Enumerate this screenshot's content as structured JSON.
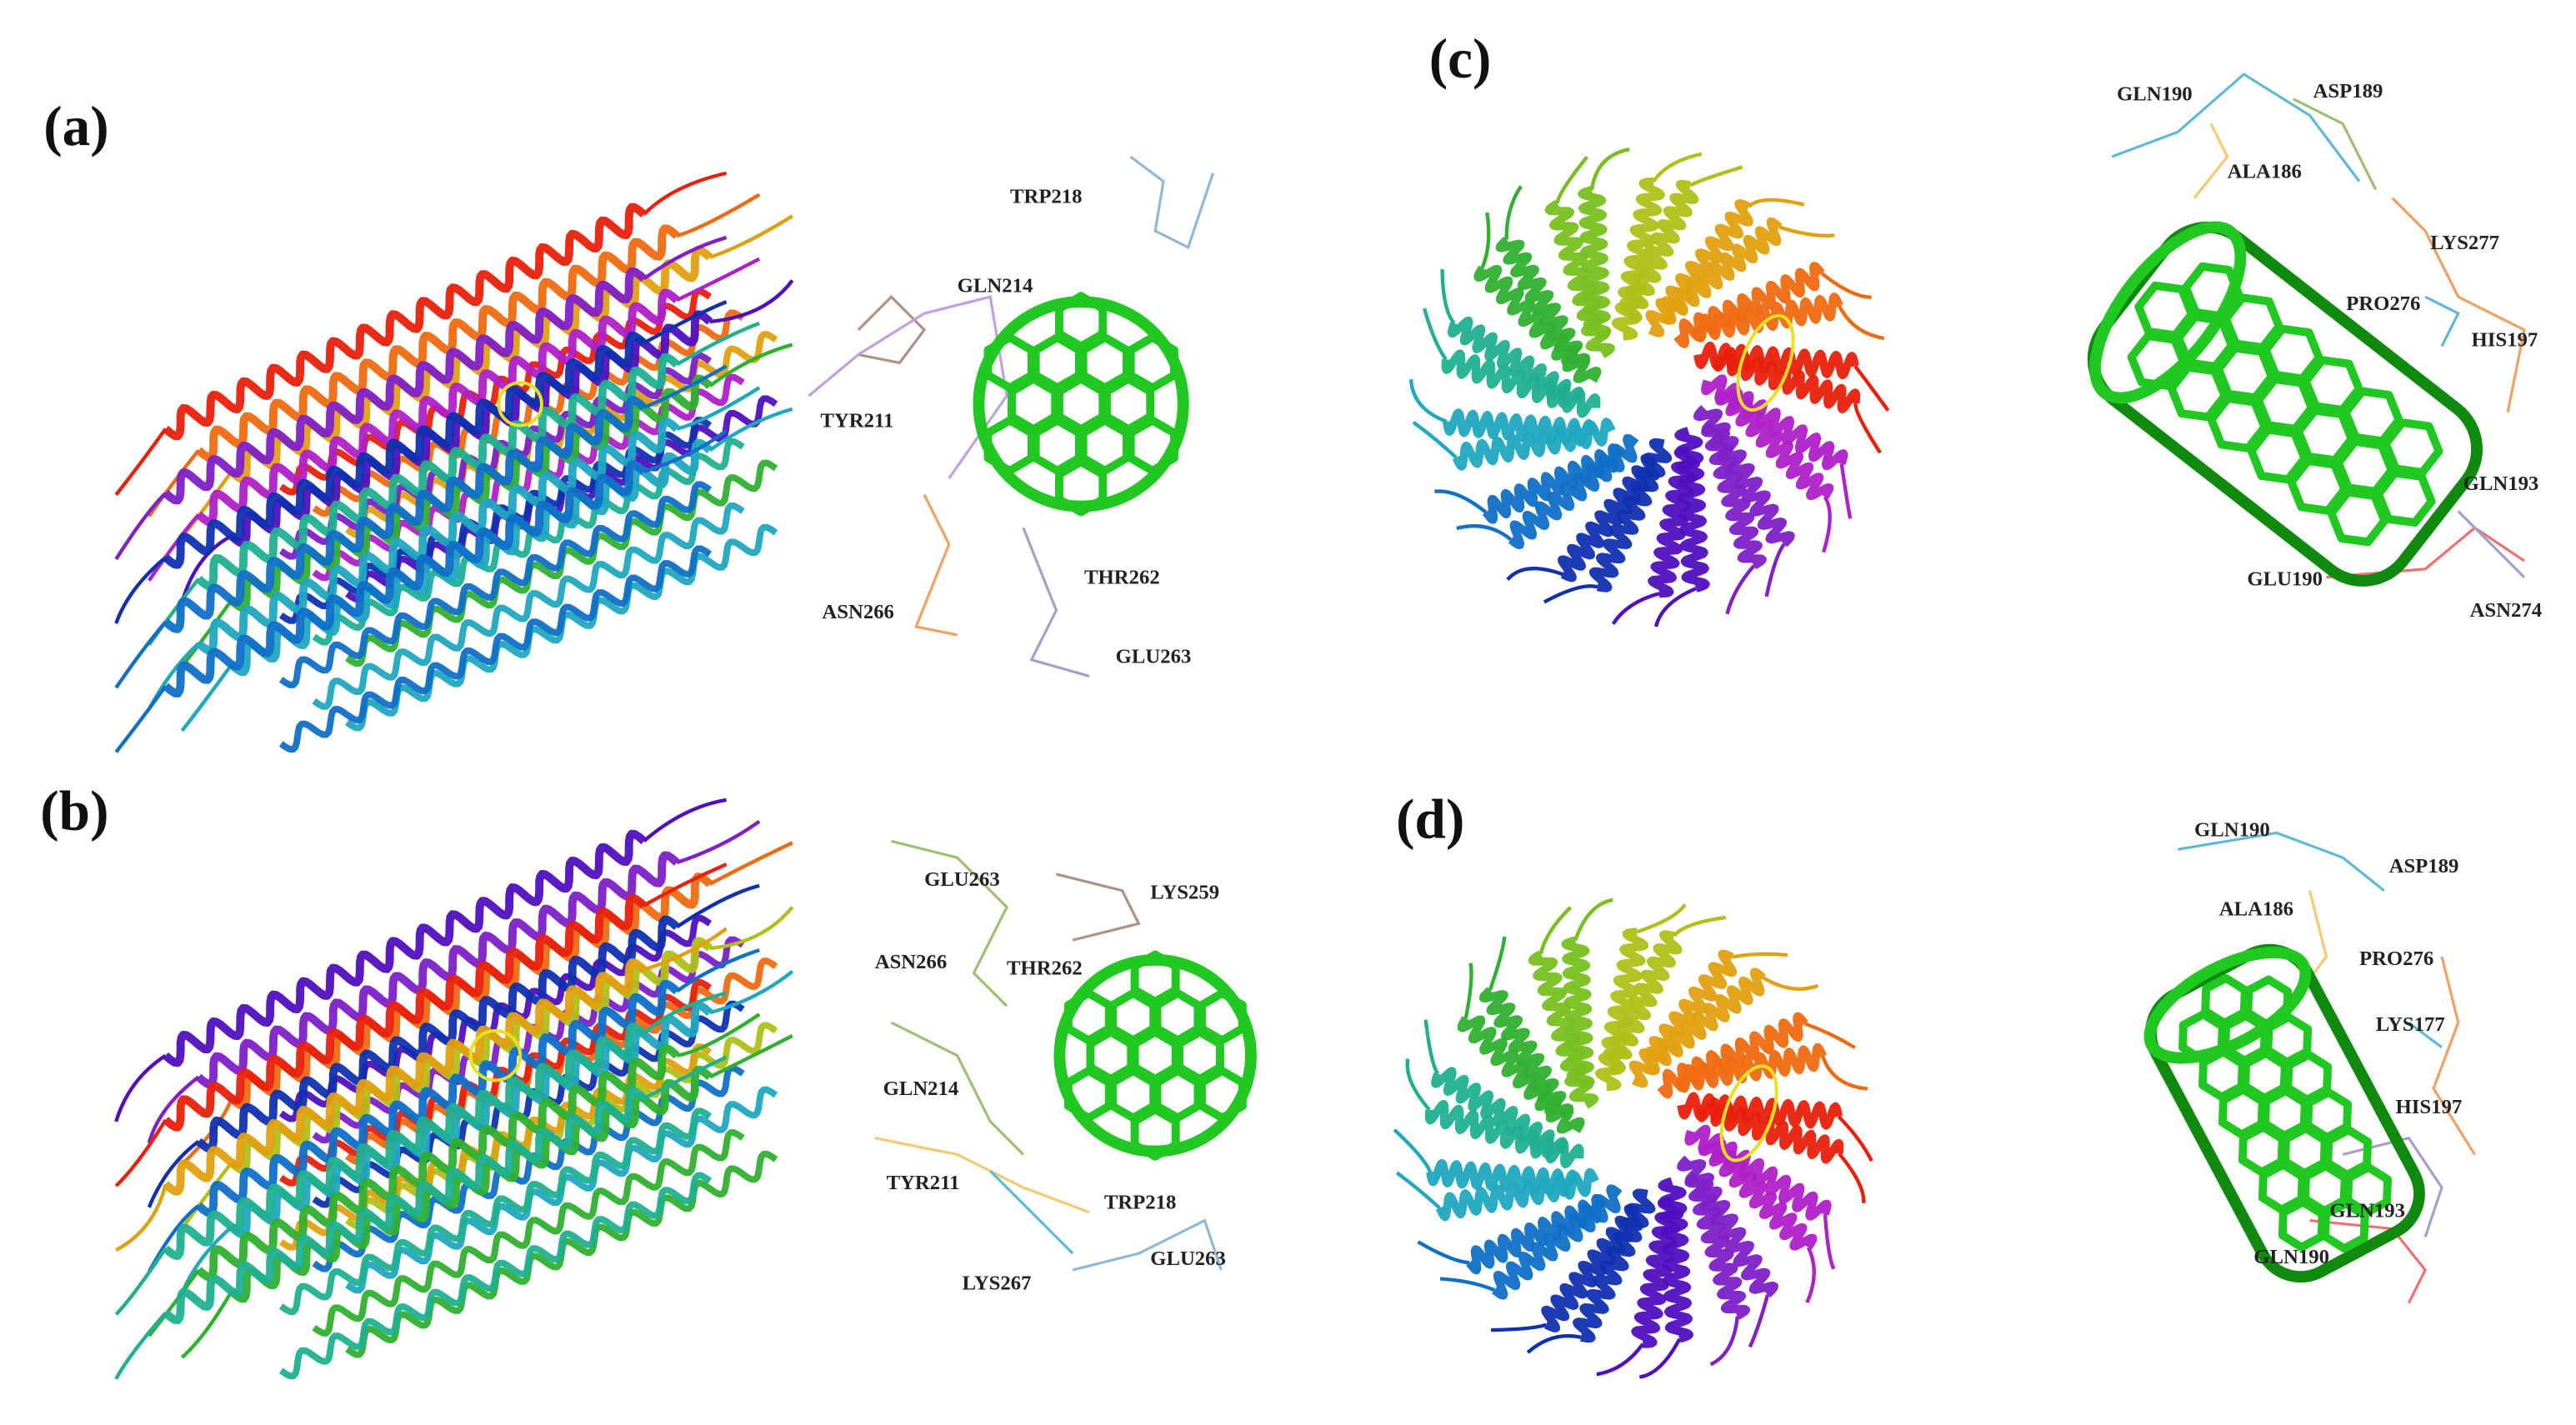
{
  "panels": [
    {
      "label": "(a)",
      "ligand": "fullerene",
      "residues": [
        "TRP218",
        "GLN214",
        "TYR211",
        "THR262",
        "ASN266",
        "GLU263"
      ]
    },
    {
      "label": "(b)",
      "ligand": "fullerene",
      "residues": [
        "GLU263",
        "LYS259",
        "ASN266",
        "THR262",
        "GLN214",
        "TYR211",
        "TRP218",
        "GLU263",
        "LYS267"
      ]
    },
    {
      "label": "(c)",
      "ligand": "nanotube",
      "residues": [
        "GLN190",
        "ASP189",
        "ALA186",
        "LYS277",
        "PRO276",
        "HIS197",
        "GLN193",
        "GLU190",
        "ASN274"
      ]
    },
    {
      "label": "(d)",
      "ligand": "nanotube",
      "residues": [
        "GLN190",
        "ASP189",
        "ALA186",
        "PRO276",
        "LYS177",
        "HIS197",
        "GLN193",
        "GLN190"
      ]
    }
  ],
  "colors": {
    "ligand": "#22c822",
    "ligand_dark": "#0f8a0f",
    "rainbow": [
      "#e8200c",
      "#f06a10",
      "#e0a010",
      "#b0c018",
      "#78c020",
      "#30b030",
      "#20b090",
      "#20a8c0",
      "#1070c8",
      "#1030b0",
      "#5010c0",
      "#8020c8",
      "#b020c8"
    ],
    "residue_sticks": [
      "#8fb8d8",
      "#b09080",
      "#c0a0e0",
      "#f0a060",
      "#a0a0c8",
      "#9cc070",
      "#f8c870",
      "#60b8d8",
      "#f07070"
    ]
  }
}
